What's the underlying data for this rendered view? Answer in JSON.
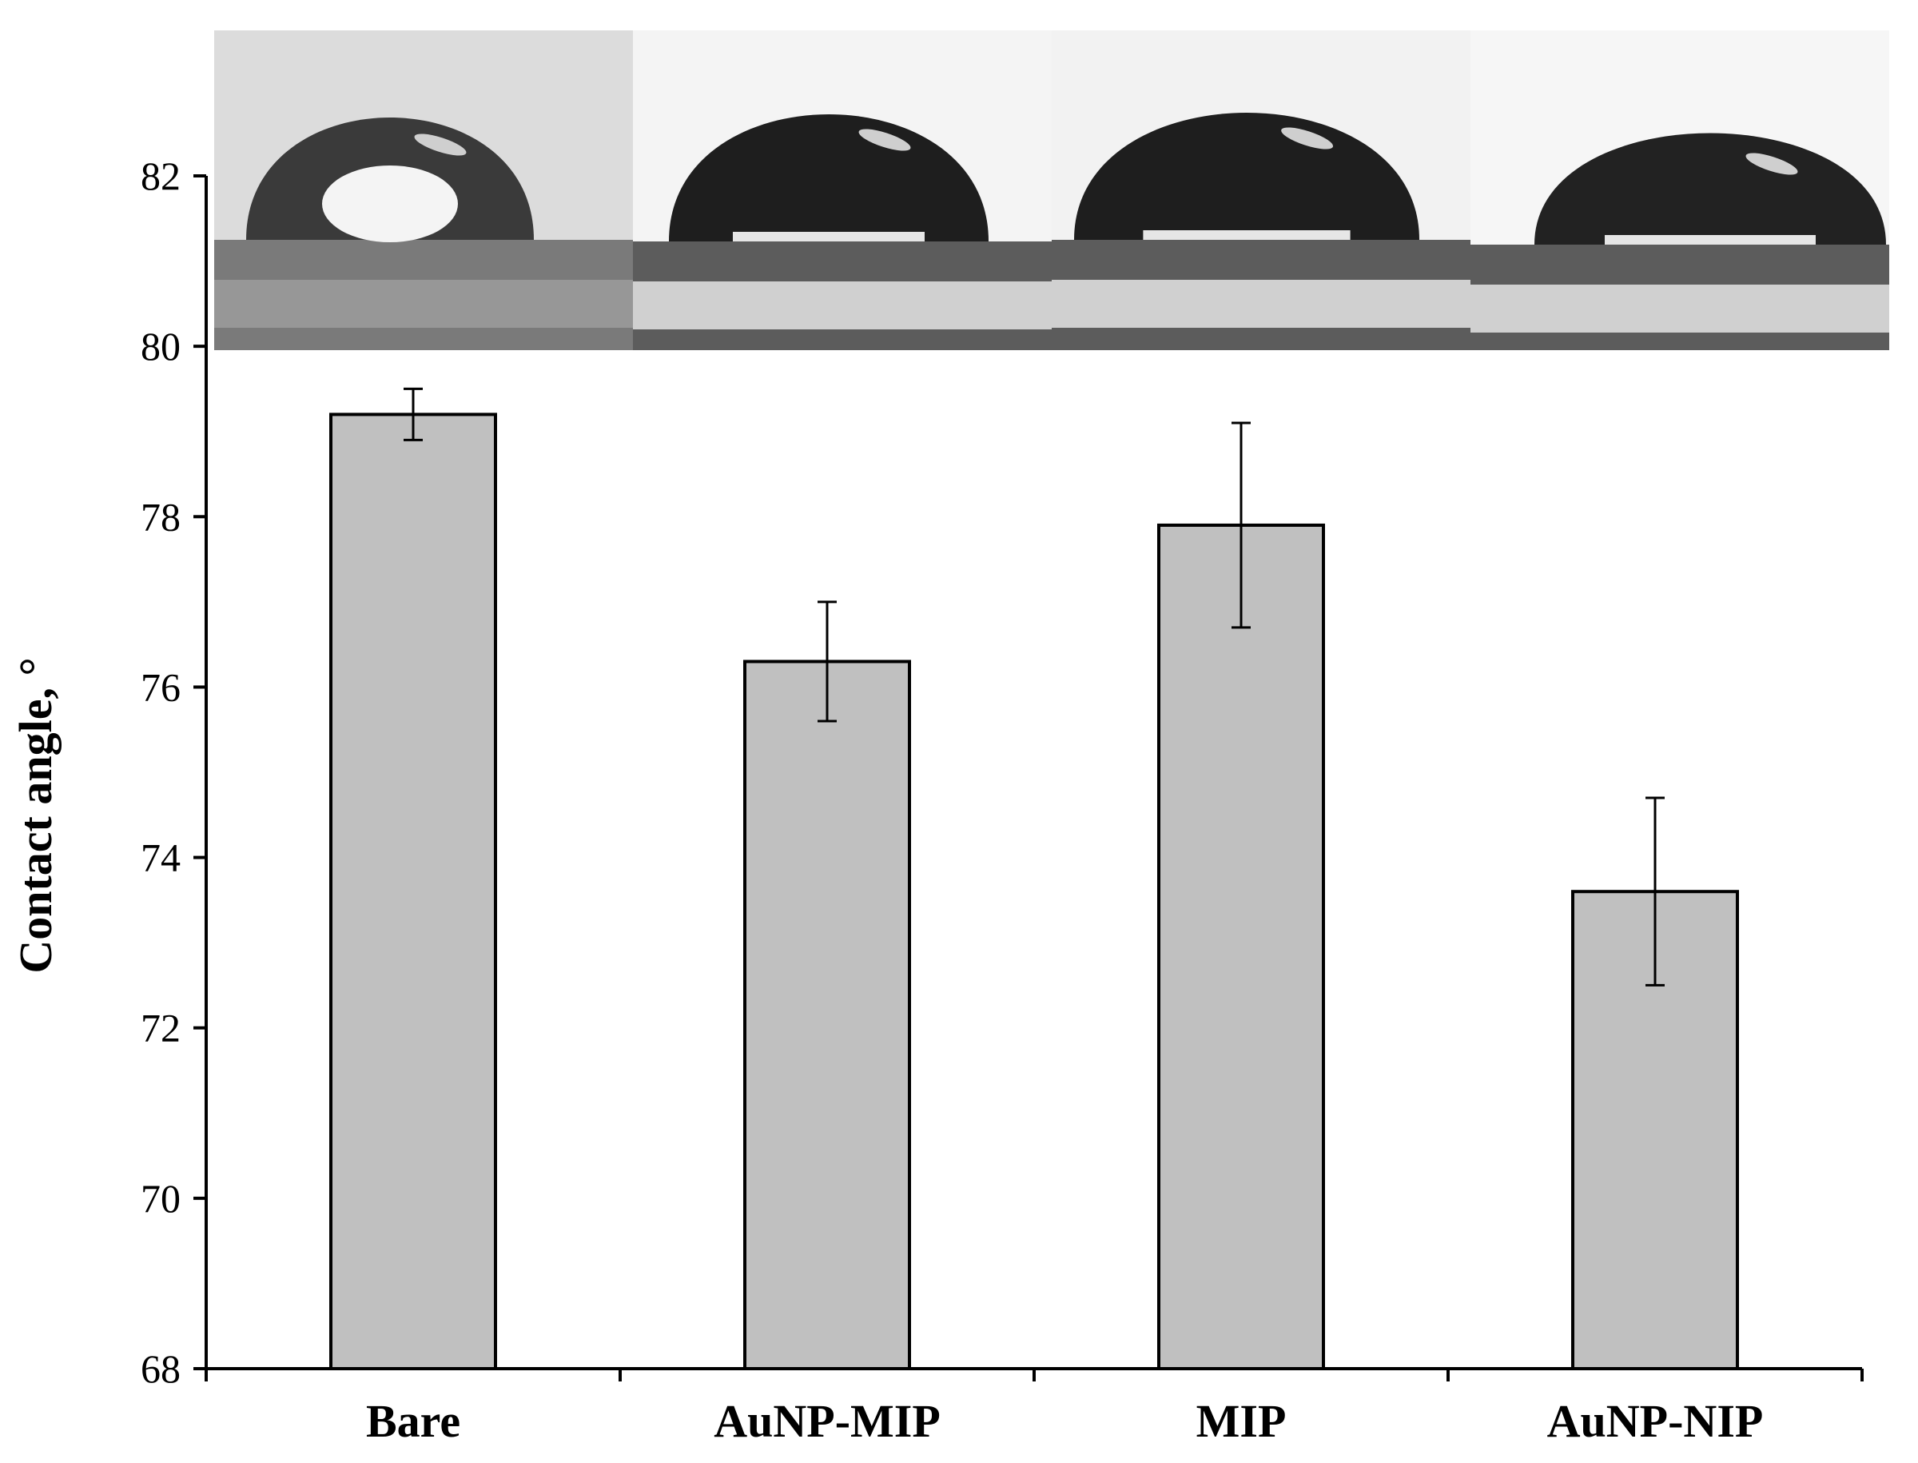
{
  "chart_data": {
    "type": "bar",
    "title": "",
    "xlabel": "",
    "ylabel": "Contact angle, °",
    "categories": [
      "Bare",
      "AuNP-MIP",
      "MIP",
      "AuNP-NIP"
    ],
    "series": [
      {
        "name": "Contact angle",
        "values": [
          79.2,
          76.3,
          77.9,
          73.6
        ],
        "errors": [
          0.3,
          0.7,
          1.2,
          1.1
        ]
      }
    ],
    "ylim": [
      68,
      82
    ],
    "yticks": [
      68,
      70,
      72,
      74,
      76,
      78,
      80,
      82
    ],
    "grid": false,
    "legend": "none",
    "colors": {
      "bar_fill": "#c0c0c0",
      "bar_stroke": "#000000",
      "axis": "#000000"
    },
    "inset_images": [
      {
        "name": "droplet-image-bare",
        "background": "#dcdcdc",
        "drop": "#3a3a3a"
      },
      {
        "name": "droplet-image-aunp-mip",
        "background": "#f4f4f4",
        "drop": "#1e1e1e"
      },
      {
        "name": "droplet-image-mip",
        "background": "#f2f2f2",
        "drop": "#1e1e1e"
      },
      {
        "name": "droplet-image-aunp-nip",
        "background": "#f6f6f6",
        "drop": "#222222"
      }
    ]
  }
}
